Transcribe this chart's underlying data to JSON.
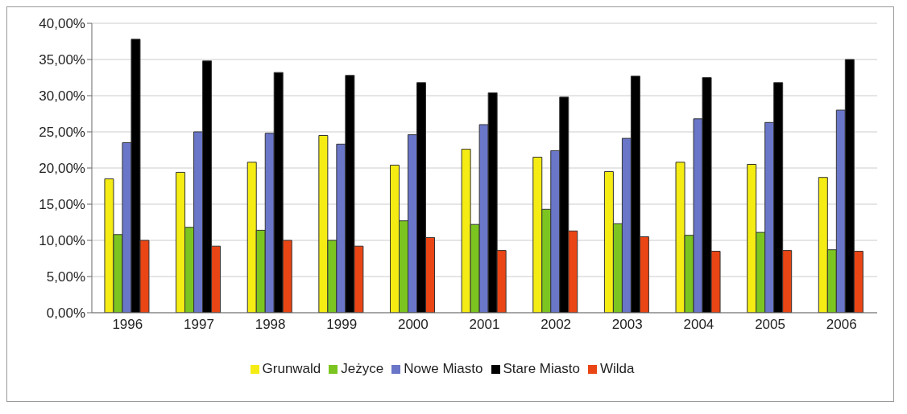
{
  "chart_data": {
    "type": "bar",
    "categories": [
      "1996",
      "1997",
      "1998",
      "1999",
      "2000",
      "2001",
      "2002",
      "2003",
      "2004",
      "2005",
      "2006"
    ],
    "series": [
      {
        "name": "Grunwald",
        "color": "#f5ec14",
        "values": [
          18.5,
          19.4,
          20.8,
          24.5,
          20.4,
          22.6,
          21.5,
          19.5,
          20.8,
          20.5,
          18.7
        ]
      },
      {
        "name": "Jeżyce",
        "color": "#7cc520",
        "values": [
          10.8,
          11.8,
          11.4,
          10,
          12.7,
          12.2,
          14.3,
          12.3,
          10.7,
          11.1,
          8.7
        ]
      },
      {
        "name": "Nowe Miasto",
        "color": "#6a76c8",
        "values": [
          23.5,
          25,
          24.8,
          23.3,
          24.6,
          26,
          22.4,
          24.1,
          26.8,
          26.3,
          28
        ]
      },
      {
        "name": "Stare Miasto",
        "color": "#000000",
        "values": [
          37.8,
          34.8,
          33.2,
          32.8,
          31.8,
          30.4,
          29.8,
          32.7,
          32.5,
          31.8,
          35
        ]
      },
      {
        "name": "Wilda",
        "color": "#ea4514",
        "values": [
          10,
          9.2,
          10,
          9.2,
          10.4,
          8.6,
          11.3,
          10.5,
          8.5,
          8.6,
          8.5
        ]
      }
    ],
    "ylim": [
      0,
      40
    ],
    "yticks": [
      {
        "value": 0,
        "label": "0,00%"
      },
      {
        "value": 5,
        "label": "5,00%"
      },
      {
        "value": 10,
        "label": "10,00%"
      },
      {
        "value": 15,
        "label": "15,00%"
      },
      {
        "value": 20,
        "label": "20,00%"
      },
      {
        "value": 25,
        "label": "25,00%"
      },
      {
        "value": 30,
        "label": "30,00%"
      },
      {
        "value": 35,
        "label": "35,00%"
      },
      {
        "value": 40,
        "label": "40,00%"
      }
    ],
    "grid": "y",
    "legend": "bottom"
  }
}
